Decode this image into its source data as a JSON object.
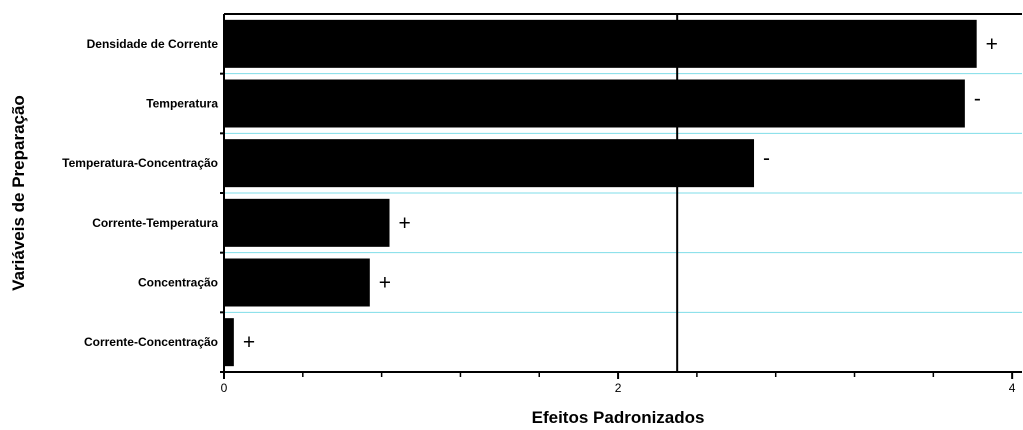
{
  "chart_data": {
    "type": "bar",
    "orientation": "horizontal",
    "xlabel": "Efeitos Padronizados",
    "ylabel": "Variáveis de Preparação",
    "categories": [
      "Densidade de Corrente",
      "Temperatura",
      "Temperatura-Concentração",
      "Corrente-Temperatura",
      "Concentração",
      "Corrente-Concentração"
    ],
    "values": [
      3.82,
      3.76,
      2.69,
      0.84,
      0.74,
      0.05
    ],
    "signs": [
      "+",
      "-",
      "-",
      "+",
      "+",
      "+"
    ],
    "xlim": [
      0,
      4.05
    ],
    "xticks": [
      0,
      2,
      4
    ],
    "xtick_labels": [
      "0",
      "2",
      "4"
    ],
    "reference_line": 2.3,
    "grid": "horizontal",
    "colors": {
      "bar": "#000000",
      "grid": "#7fdde8",
      "axis": "#000000",
      "reference_line": "#000000"
    }
  }
}
